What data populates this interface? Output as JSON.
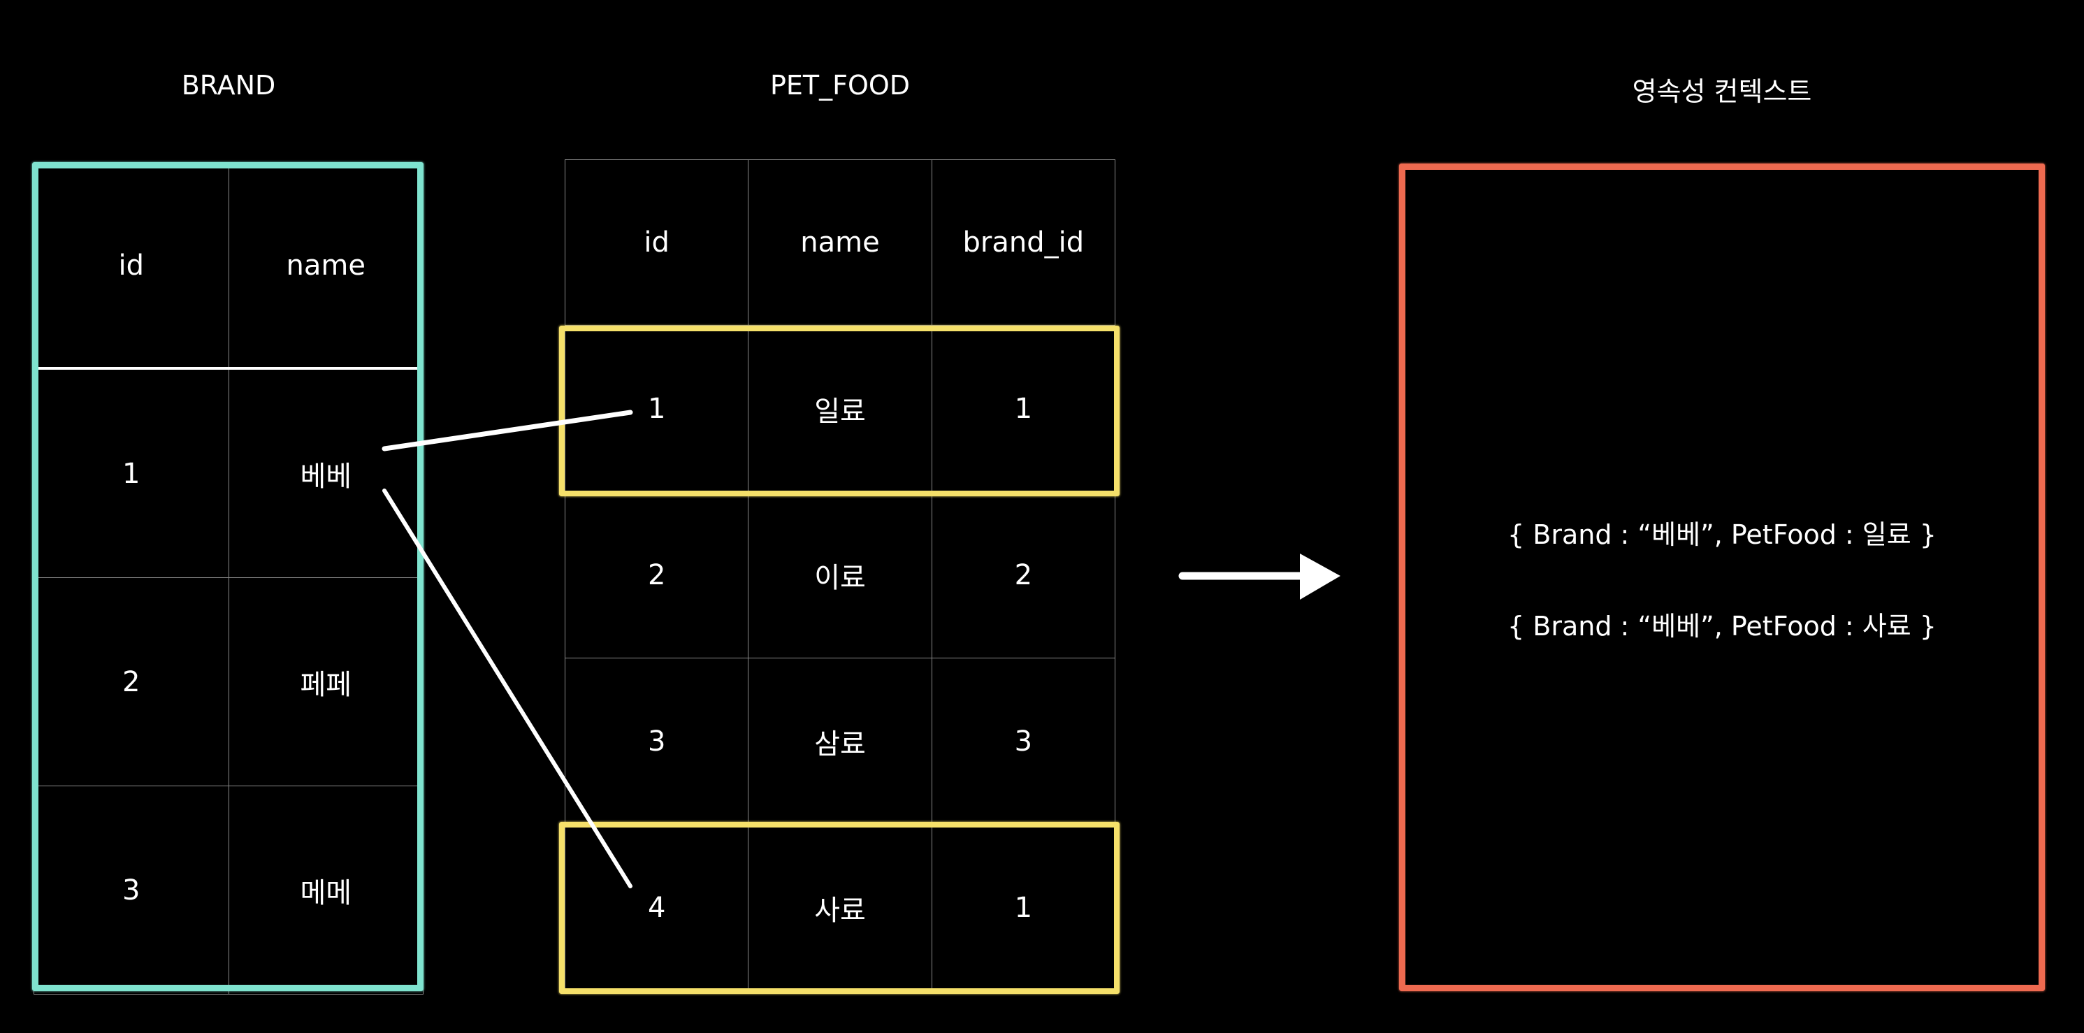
{
  "brand": {
    "title": "BRAND",
    "columns": [
      "id",
      "name"
    ],
    "rows": [
      [
        "1",
        "베베"
      ],
      [
        "2",
        "페페"
      ],
      [
        "3",
        "메메"
      ]
    ]
  },
  "pet_food": {
    "title": "PET_FOOD",
    "columns": [
      "id",
      "name",
      "brand_id"
    ],
    "rows": [
      [
        "1",
        "일료",
        "1"
      ],
      [
        "2",
        "이료",
        "2"
      ],
      [
        "3",
        "삼료",
        "3"
      ],
      [
        "4",
        "사료",
        "1"
      ]
    ]
  },
  "context": {
    "title": "영속성 컨텍스트",
    "entries": [
      "{ Brand : “베베”, PetFood : 일료 }",
      "{ Brand : “베베”, PetFood : 사료 }"
    ]
  },
  "colors": {
    "brand_outline": "#7fe3cf",
    "highlight": "#f5e06a",
    "context_outline": "#ee6a50",
    "background": "#000000",
    "line": "#ffffff"
  }
}
